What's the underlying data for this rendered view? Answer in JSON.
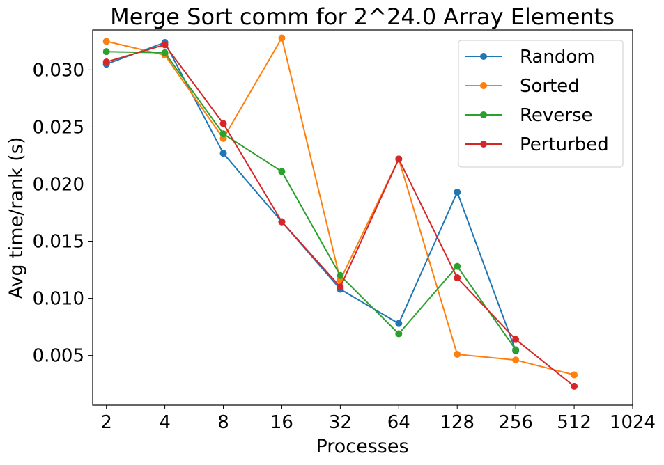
{
  "chart_data": {
    "type": "line",
    "title": "Merge Sort comm for 2^24.0 Array Elements",
    "xlabel": "Processes",
    "ylabel": "Avg time/rank (s)",
    "x_scale": "log2",
    "x_ticks": [
      2,
      4,
      8,
      16,
      32,
      64,
      128,
      256,
      512,
      1024
    ],
    "x_tick_labels": [
      "2",
      "4",
      "8",
      "16",
      "32",
      "64",
      "128",
      "256",
      "512",
      "1024"
    ],
    "xlim": [
      1.7,
      1024
    ],
    "ylim": [
      0.00065,
      0.0335
    ],
    "y_ticks": [
      0.005,
      0.01,
      0.015,
      0.02,
      0.025,
      0.03
    ],
    "y_tick_labels": [
      "0.005",
      "0.010",
      "0.015",
      "0.020",
      "0.025",
      "0.030"
    ],
    "grid": false,
    "legend_position": "top-right",
    "marker": "circle",
    "series": [
      {
        "name": "Random",
        "color": "#1f77b4",
        "x": [
          2,
          4,
          8,
          16,
          32,
          64,
          128,
          256
        ],
        "y": [
          0.0305,
          0.0324,
          0.0227,
          0.0167,
          0.0108,
          0.0078,
          0.0193,
          0.0054
        ]
      },
      {
        "name": "Sorted",
        "color": "#ff7f0e",
        "x": [
          2,
          4,
          8,
          16,
          32,
          64,
          128,
          256,
          512
        ],
        "y": [
          0.0325,
          0.0313,
          0.024,
          0.0328,
          0.0116,
          0.0222,
          0.0051,
          0.0046,
          0.0033
        ]
      },
      {
        "name": "Reverse",
        "color": "#2ca02c",
        "x": [
          2,
          4,
          8,
          16,
          32,
          64,
          128,
          256
        ],
        "y": [
          0.0316,
          0.0315,
          0.0244,
          0.0211,
          0.012,
          0.0069,
          0.0128,
          0.0055
        ]
      },
      {
        "name": "Perturbed",
        "color": "#d62728",
        "x": [
          2,
          4,
          8,
          16,
          32,
          64,
          128,
          256,
          512
        ],
        "y": [
          0.0307,
          0.0322,
          0.0253,
          0.0167,
          0.011,
          0.0222,
          0.0118,
          0.0064,
          0.0023
        ]
      }
    ]
  }
}
